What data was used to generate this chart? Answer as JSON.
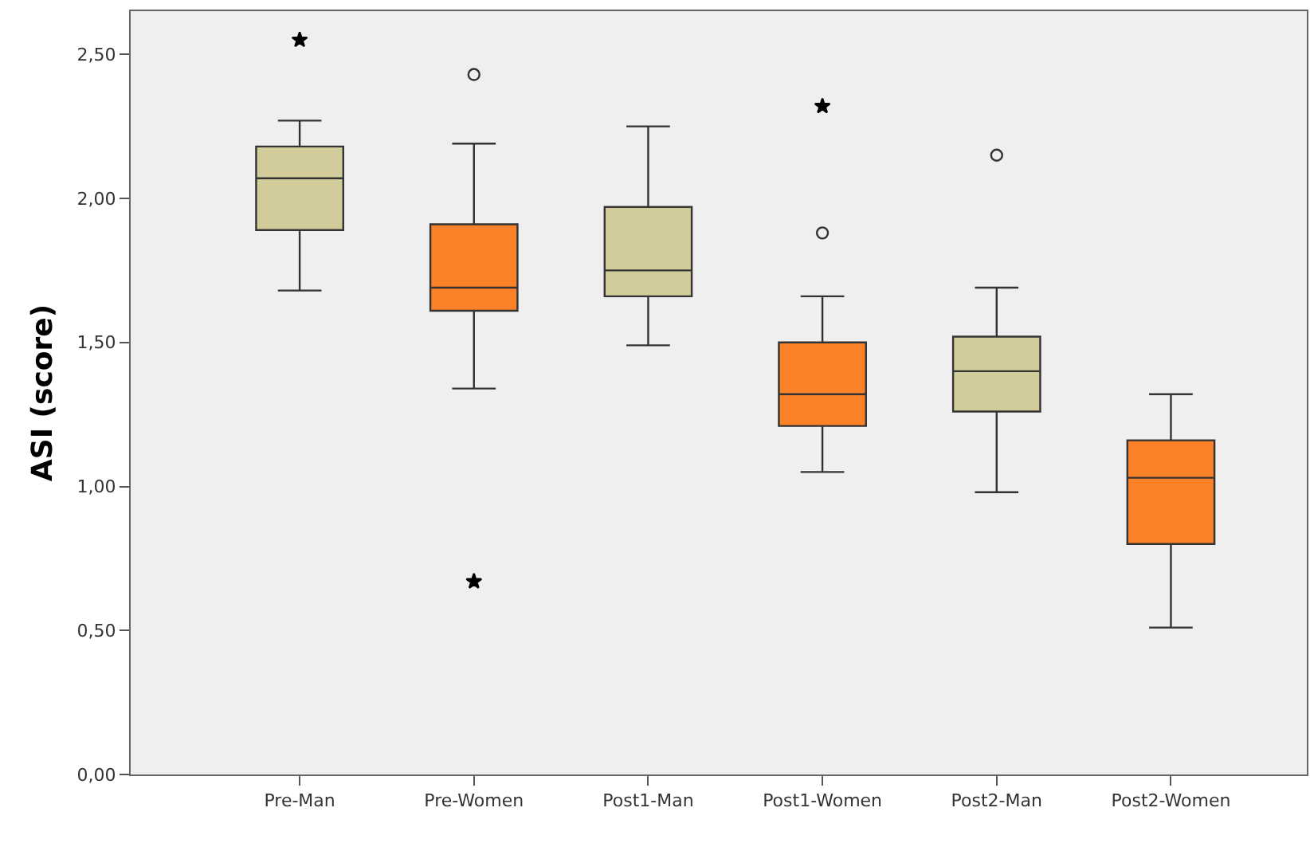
{
  "chart_data": {
    "type": "box",
    "ylabel": "ASI (score)",
    "categories": [
      "Pre-Man",
      "Pre-Women",
      "Post1-Man",
      "Post1-Women",
      "Post2-Man",
      "Post2-Women"
    ],
    "colors": [
      "#d2cc9a",
      "#fb8228",
      "#d2cc9a",
      "#fb8228",
      "#d2cc9a",
      "#fb8228"
    ],
    "boxes": [
      {
        "low": 1.68,
        "q1": 1.89,
        "median": 2.07,
        "q3": 2.18,
        "high": 2.27
      },
      {
        "low": 1.34,
        "q1": 1.61,
        "median": 1.69,
        "q3": 1.91,
        "high": 2.19,
        "outliers": [
          2.43
        ]
      },
      {
        "low": 1.49,
        "q1": 1.66,
        "median": 1.75,
        "q3": 1.97,
        "high": 2.25
      },
      {
        "low": 1.05,
        "q1": 1.21,
        "median": 1.32,
        "q3": 1.5,
        "high": 1.66,
        "outliers": [
          1.88
        ]
      },
      {
        "low": 0.98,
        "q1": 1.26,
        "median": 1.4,
        "q3": 1.52,
        "high": 1.69,
        "outliers": [
          2.15
        ]
      },
      {
        "low": 0.51,
        "q1": 0.8,
        "median": 1.03,
        "q3": 1.16,
        "high": 1.32
      }
    ],
    "series": [
      {
        "type": "scatter",
        "marker": "star",
        "color": "#000000",
        "x": [
          "Pre-Man",
          "Pre-Women",
          "Post1-Women"
        ],
        "values": [
          2.55,
          0.67,
          2.32
        ]
      }
    ],
    "ylim": [
      0,
      2.65
    ],
    "yticks": [
      {
        "value": 0,
        "label": "0,00"
      },
      {
        "value": 0.5,
        "label": "0,50"
      },
      {
        "value": 1,
        "label": "1,00"
      },
      {
        "value": 1.5,
        "label": "1,50"
      },
      {
        "value": 2,
        "label": "2,00"
      },
      {
        "value": 2.5,
        "label": "2,50"
      }
    ],
    "grid": false
  }
}
